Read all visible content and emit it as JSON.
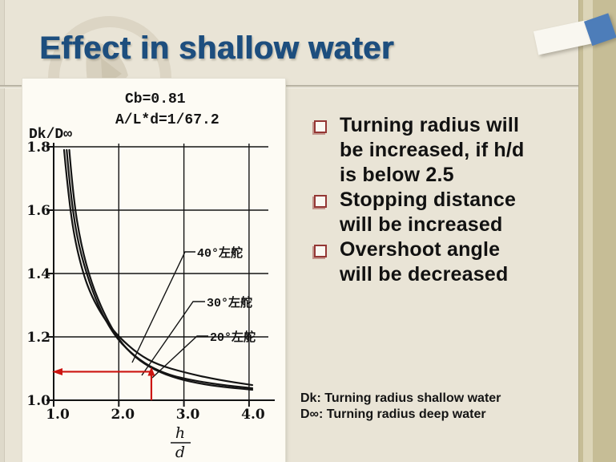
{
  "slide": {
    "title": "Effect in shallow water",
    "bullets": [
      {
        "lines": [
          "Turning radius will",
          "be increased, if h/d",
          "is below 2.5"
        ]
      },
      {
        "lines": [
          "Stopping distance",
          "will be increased"
        ]
      },
      {
        "lines": [
          "Overshoot angle",
          "will be decreased"
        ]
      }
    ],
    "footnotes": [
      "Dk: Turning radius shallow water",
      "D∞: Turning radius deep water"
    ]
  },
  "chart_data": {
    "type": "line",
    "title_lines": [
      "Cb=0.81",
      "A/L*d=1/67.2"
    ],
    "ylabel": "Dk/D∞",
    "xlabel_fraction": {
      "numerator": "h",
      "denominator": "d"
    },
    "xlim": [
      1.0,
      4.1
    ],
    "ylim": [
      1.0,
      1.8
    ],
    "x_ticks": [
      "1.0",
      "2.0",
      "3.0",
      "4.0"
    ],
    "y_ticks": [
      "1.0",
      "1.2",
      "1.4",
      "1.6",
      "1.8"
    ],
    "grid": true,
    "legend_position": "inline-labels-with-leader-lines",
    "series": [
      {
        "name": "40°左舵",
        "points": [
          [
            1.16,
            1.79
          ],
          [
            1.2,
            1.7
          ],
          [
            1.3,
            1.53
          ],
          [
            1.45,
            1.4
          ],
          [
            1.6,
            1.32
          ],
          [
            1.8,
            1.25
          ],
          [
            2.0,
            1.2
          ],
          [
            2.3,
            1.145
          ],
          [
            2.6,
            1.112
          ],
          [
            3.0,
            1.088
          ],
          [
            3.5,
            1.065
          ],
          [
            4.05,
            1.048
          ]
        ]
      },
      {
        "name": "30°左舵",
        "points": [
          [
            1.2,
            1.79
          ],
          [
            1.25,
            1.67
          ],
          [
            1.35,
            1.52
          ],
          [
            1.5,
            1.4
          ],
          [
            1.7,
            1.29
          ],
          [
            1.9,
            1.215
          ],
          [
            2.1,
            1.165
          ],
          [
            2.4,
            1.115
          ],
          [
            2.7,
            1.085
          ],
          [
            3.0,
            1.068
          ],
          [
            3.5,
            1.05
          ],
          [
            4.05,
            1.038
          ]
        ]
      },
      {
        "name": "20°左舵",
        "points": [
          [
            1.24,
            1.79
          ],
          [
            1.3,
            1.64
          ],
          [
            1.42,
            1.49
          ],
          [
            1.58,
            1.37
          ],
          [
            1.78,
            1.27
          ],
          [
            2.0,
            1.19
          ],
          [
            2.25,
            1.135
          ],
          [
            2.55,
            1.095
          ],
          [
            2.9,
            1.068
          ],
          [
            3.3,
            1.05
          ],
          [
            3.7,
            1.04
          ],
          [
            4.05,
            1.033
          ]
        ]
      }
    ],
    "annotation": {
      "type": "reference-lines",
      "x_value": 2.5,
      "y_value": 1.09,
      "color": "#cc1511"
    }
  },
  "colors": {
    "slide_bg": "#e9e4d6",
    "title": "#1d4e7e",
    "panel_bg": "#fdfbf4",
    "side_band": "#c6bd96",
    "side_band_stripe": "#dcd5b8",
    "accent_blue": "#4d7db9",
    "bullet_marker": "#943634",
    "annotation_red": "#cc1511",
    "curve_black": "#141414"
  }
}
